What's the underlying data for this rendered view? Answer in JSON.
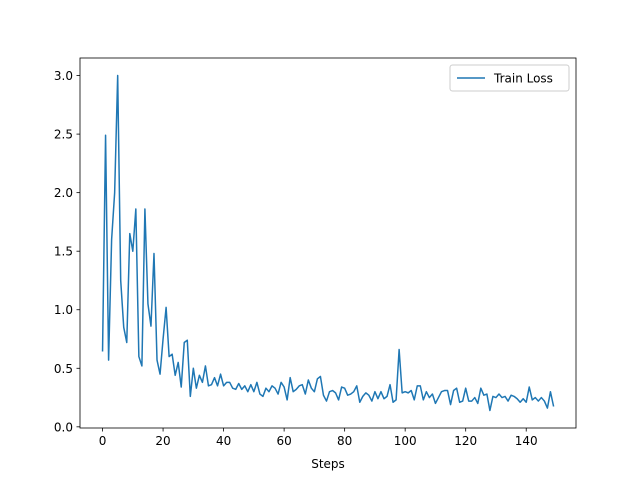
{
  "chart_data": {
    "type": "line",
    "title": "",
    "xlabel": "Steps",
    "ylabel": "",
    "xlim": [
      -7.45,
      156.45
    ],
    "ylim": [
      -0.01,
      3.15
    ],
    "xticks": [
      0,
      20,
      40,
      60,
      80,
      100,
      120,
      140
    ],
    "yticks": [
      0.0,
      0.5,
      1.0,
      1.5,
      2.0,
      2.5,
      3.0
    ],
    "xtick_labels": [
      "0",
      "20",
      "40",
      "60",
      "80",
      "100",
      "120",
      "140"
    ],
    "ytick_labels": [
      "0.0",
      "0.5",
      "1.0",
      "1.5",
      "2.0",
      "2.5",
      "3.0"
    ],
    "grid": false,
    "legend_position": "upper right",
    "series": [
      {
        "name": "Train Loss",
        "color": "#1f77b4",
        "x": [
          0,
          1,
          2,
          3,
          4,
          5,
          6,
          7,
          8,
          9,
          10,
          11,
          12,
          13,
          14,
          15,
          16,
          17,
          18,
          19,
          20,
          21,
          22,
          23,
          24,
          25,
          26,
          27,
          28,
          29,
          30,
          31,
          32,
          33,
          34,
          35,
          36,
          37,
          38,
          39,
          40,
          41,
          42,
          43,
          44,
          45,
          46,
          47,
          48,
          49,
          50,
          51,
          52,
          53,
          54,
          55,
          56,
          57,
          58,
          59,
          60,
          61,
          62,
          63,
          64,
          65,
          66,
          67,
          68,
          69,
          70,
          71,
          72,
          73,
          74,
          75,
          76,
          77,
          78,
          79,
          80,
          81,
          82,
          83,
          84,
          85,
          86,
          87,
          88,
          89,
          90,
          91,
          92,
          93,
          94,
          95,
          96,
          97,
          98,
          99,
          100,
          101,
          102,
          103,
          104,
          105,
          106,
          107,
          108,
          109,
          110,
          111,
          112,
          113,
          114,
          115,
          116,
          117,
          118,
          119,
          120,
          121,
          122,
          123,
          124,
          125,
          126,
          127,
          128,
          129,
          130,
          131,
          132,
          133,
          134,
          135,
          136,
          137,
          138,
          139,
          140,
          141,
          142,
          143,
          144,
          145,
          146,
          147,
          148,
          149
        ],
        "y": [
          0.65,
          2.49,
          0.57,
          1.6,
          2.0,
          3.0,
          1.25,
          0.85,
          0.72,
          1.65,
          1.5,
          1.86,
          0.6,
          0.52,
          1.86,
          1.05,
          0.86,
          1.48,
          0.57,
          0.45,
          0.75,
          1.02,
          0.6,
          0.62,
          0.44,
          0.55,
          0.34,
          0.72,
          0.74,
          0.26,
          0.5,
          0.33,
          0.44,
          0.38,
          0.52,
          0.35,
          0.36,
          0.42,
          0.35,
          0.45,
          0.35,
          0.38,
          0.38,
          0.33,
          0.32,
          0.37,
          0.32,
          0.35,
          0.3,
          0.36,
          0.3,
          0.38,
          0.28,
          0.26,
          0.33,
          0.3,
          0.35,
          0.33,
          0.28,
          0.38,
          0.34,
          0.23,
          0.42,
          0.3,
          0.32,
          0.35,
          0.36,
          0.28,
          0.4,
          0.33,
          0.3,
          0.41,
          0.43,
          0.27,
          0.22,
          0.3,
          0.31,
          0.29,
          0.23,
          0.34,
          0.33,
          0.27,
          0.28,
          0.3,
          0.35,
          0.21,
          0.26,
          0.29,
          0.27,
          0.22,
          0.3,
          0.24,
          0.3,
          0.24,
          0.26,
          0.36,
          0.21,
          0.23,
          0.66,
          0.29,
          0.3,
          0.29,
          0.31,
          0.23,
          0.35,
          0.35,
          0.23,
          0.3,
          0.25,
          0.28,
          0.2,
          0.25,
          0.3,
          0.31,
          0.31,
          0.19,
          0.31,
          0.33,
          0.21,
          0.22,
          0.33,
          0.22,
          0.22,
          0.25,
          0.2,
          0.33,
          0.27,
          0.28,
          0.14,
          0.26,
          0.25,
          0.28,
          0.25,
          0.26,
          0.22,
          0.27,
          0.26,
          0.24,
          0.21,
          0.24,
          0.21,
          0.34,
          0.23,
          0.25,
          0.22,
          0.25,
          0.22,
          0.16,
          0.3,
          0.18
        ]
      }
    ]
  }
}
